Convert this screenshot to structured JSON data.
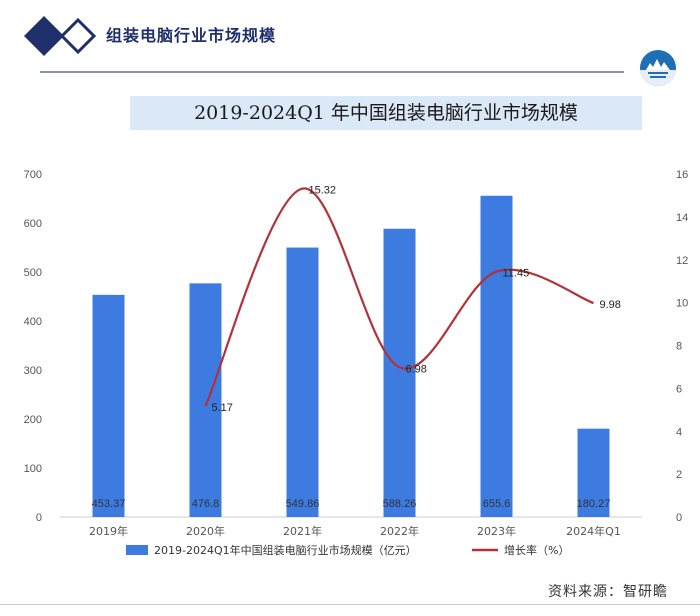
{
  "header": {
    "title": "组装电脑行业市场规模"
  },
  "chart_title": "2019-2024Q1 年中国组装电脑行业市场规模",
  "source": "资料来源：智研瞻",
  "colors": {
    "bar": "#3d7be0",
    "line": "#b23237",
    "brand": "#1f2f6b",
    "title_band": "#dae8f7"
  },
  "chart_data": {
    "type": "bar",
    "categories": [
      "2019年",
      "2020年",
      "2021年",
      "2022年",
      "2023年",
      "2024年Q1"
    ],
    "series": [
      {
        "name": "2019-2024Q1年中国组装电脑行业市场规模（亿元）",
        "type": "bar",
        "axis": "left",
        "values": [
          453.37,
          476.8,
          549.86,
          588.26,
          655.6,
          180.27
        ],
        "labels": [
          "453.37",
          "476.8",
          "549.86",
          "588.26",
          "655.6",
          "180.27"
        ]
      },
      {
        "name": "增长率（%）",
        "type": "line",
        "axis": "right",
        "values": [
          null,
          5.17,
          15.32,
          6.98,
          11.45,
          9.98
        ],
        "labels": [
          "",
          "5.17",
          "15.32",
          "6.98",
          "11.45",
          "9.98"
        ]
      }
    ],
    "y_left": {
      "min": 0,
      "max": 700,
      "ticks": [
        "0",
        "100",
        "200",
        "300",
        "400",
        "500",
        "600",
        "700"
      ]
    },
    "y_right": {
      "min": 0,
      "max": 16,
      "ticks": [
        "0",
        "2",
        "4",
        "6",
        "8",
        "10",
        "12",
        "14",
        "16"
      ]
    },
    "legend_position": "bottom",
    "grid": false
  }
}
